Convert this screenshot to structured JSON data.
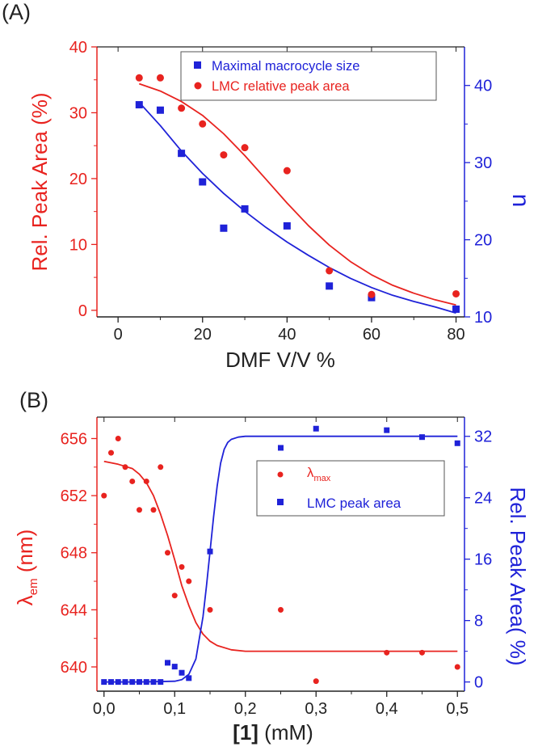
{
  "colors": {
    "red": "#e8231f",
    "blue": "#1f22d8",
    "black": "#222222"
  },
  "chart_data": [
    {
      "type": "scatter",
      "panel_label": "(A)",
      "xlabel": "DMF V/V %",
      "ylabel_left": "Rel. Peak Area (%)",
      "ylabel_right": "n",
      "xlim": [
        -5,
        82
      ],
      "ylim_left": [
        -1,
        40
      ],
      "ylim_right": [
        10,
        45
      ],
      "x_ticks": [
        0,
        20,
        40,
        60,
        80
      ],
      "x_tick_labels": [
        "0",
        "20",
        "40",
        "60",
        "80"
      ],
      "y_left_ticks": [
        0,
        10,
        20,
        30,
        40
      ],
      "y_left_tick_labels": [
        "0",
        "10",
        "20",
        "30",
        "40"
      ],
      "y_right_ticks": [
        10,
        20,
        30,
        40
      ],
      "y_right_tick_labels": [
        "10",
        "20",
        "30",
        "40"
      ],
      "legend": [
        "Maximal macrocycle size",
        "LMC relative peak area"
      ],
      "series": [
        {
          "name": "Maximal macrocycle size",
          "axis": "right",
          "marker": "square",
          "color": "#1f22d8",
          "x": [
            5,
            10,
            15,
            20,
            25,
            30,
            40,
            50,
            60,
            80
          ],
          "y": [
            37.5,
            36.8,
            31.2,
            27.5,
            21.5,
            24,
            21.8,
            14,
            12.5,
            11
          ]
        },
        {
          "name": "LMC relative peak area",
          "axis": "left",
          "marker": "circle",
          "color": "#e8231f",
          "x": [
            5,
            10,
            15,
            20,
            25,
            30,
            40,
            50,
            60,
            80
          ],
          "y": [
            35.3,
            35.3,
            30.7,
            28.3,
            23.6,
            24.7,
            21.2,
            6,
            2.4,
            2.5
          ]
        }
      ],
      "fit_curves": [
        {
          "series": "LMC relative peak area",
          "axis": "left",
          "color": "#e8231f",
          "x": [
            5,
            10,
            15,
            20,
            25,
            30,
            35,
            40,
            45,
            50,
            55,
            60,
            65,
            70,
            75,
            80
          ],
          "y": [
            34.4,
            33.3,
            31.7,
            29.6,
            26.8,
            23.5,
            19.9,
            16.3,
            12.9,
            9.9,
            7.4,
            5.4,
            3.8,
            2.6,
            1.6,
            0.8
          ]
        },
        {
          "series": "Maximal macrocycle size",
          "axis": "right",
          "color": "#1f22d8",
          "x": [
            5,
            10,
            15,
            20,
            25,
            30,
            35,
            40,
            45,
            50,
            55,
            60,
            65,
            70,
            75,
            80
          ],
          "y": [
            37.8,
            34.8,
            31.5,
            28.6,
            26.0,
            23.7,
            21.6,
            19.7,
            18.0,
            16.4,
            15.0,
            13.8,
            12.8,
            12.0,
            11.3,
            10.5
          ]
        }
      ]
    },
    {
      "type": "scatter",
      "panel_label": "(B)",
      "xlabel_bold": "[1]",
      "xlabel_rest": " (mM)",
      "ylabel_left_main": "λ",
      "ylabel_left_sub": "em",
      "ylabel_left_rest": " (nm)",
      "ylabel_right": "Rel. Peak Area( %)",
      "xlim": [
        -0.01,
        0.51
      ],
      "ylim_left": [
        638.3,
        657.5
      ],
      "ylim_right": [
        -1.2,
        34.5
      ],
      "x_ticks": [
        0,
        0.1,
        0.2,
        0.3,
        0.4,
        0.5
      ],
      "x_tick_labels": [
        "0,0",
        "0,1",
        "0,2",
        "0,3",
        "0,4",
        "0,5"
      ],
      "y_left_ticks": [
        640,
        644,
        648,
        652,
        656
      ],
      "y_left_tick_labels": [
        "640",
        "644",
        "648",
        "652",
        "656"
      ],
      "y_right_ticks": [
        0,
        8,
        16,
        24,
        32
      ],
      "y_right_tick_labels": [
        "0",
        "8",
        "16",
        "24",
        "32"
      ],
      "legend_lambda_main": "λ",
      "legend_lambda_sub": "max",
      "legend_lmc": "LMC peak area",
      "series": [
        {
          "name": "λmax",
          "axis": "left",
          "marker": "circle",
          "color": "#e8231f",
          "x": [
            0,
            0.01,
            0.02,
            0.03,
            0.04,
            0.05,
            0.06,
            0.07,
            0.08,
            0.09,
            0.1,
            0.11,
            0.12,
            0.15,
            0.25,
            0.3,
            0.4,
            0.45,
            0.5
          ],
          "y": [
            652,
            655,
            656,
            654,
            653,
            651,
            653,
            651,
            654,
            648,
            645,
            647,
            646,
            644,
            644,
            639,
            641,
            641,
            640
          ]
        },
        {
          "name": "LMC peak area",
          "axis": "right",
          "marker": "square",
          "color": "#1f22d8",
          "x": [
            0,
            0.01,
            0.02,
            0.03,
            0.04,
            0.05,
            0.06,
            0.07,
            0.08,
            0.09,
            0.1,
            0.11,
            0.12,
            0.15,
            0.25,
            0.3,
            0.4,
            0.45,
            0.5
          ],
          "y": [
            0,
            0,
            0,
            0,
            0,
            0,
            0,
            0,
            0,
            2.5,
            2,
            1.2,
            0.5,
            17,
            30.5,
            33,
            32.8,
            31.9,
            31.1
          ]
        }
      ],
      "fit_curves": [
        {
          "series": "λmax",
          "axis": "left",
          "color": "#e8231f",
          "x": [
            0,
            0.02,
            0.04,
            0.05,
            0.06,
            0.07,
            0.08,
            0.09,
            0.1,
            0.11,
            0.12,
            0.13,
            0.14,
            0.15,
            0.16,
            0.18,
            0.2,
            0.25,
            0.3,
            0.35,
            0.4,
            0.45,
            0.5
          ],
          "y": [
            654.4,
            654.2,
            653.9,
            653.5,
            652.9,
            652.0,
            650.7,
            649.2,
            647.5,
            645.7,
            644.3,
            643.1,
            642.3,
            641.8,
            641.5,
            641.2,
            641.1,
            641.1,
            641.1,
            641.1,
            641.1,
            641.1,
            641.1
          ]
        },
        {
          "series": "LMC peak area",
          "axis": "right",
          "color": "#1f22d8",
          "x": [
            0,
            0.05,
            0.1,
            0.11,
            0.12,
            0.13,
            0.14,
            0.145,
            0.15,
            0.155,
            0.16,
            0.165,
            0.17,
            0.175,
            0.18,
            0.19,
            0.2,
            0.25,
            0.3,
            0.35,
            0.4,
            0.45,
            0.5
          ],
          "y": [
            0,
            0,
            0.1,
            0.3,
            1.0,
            3.0,
            8.5,
            12.5,
            17.0,
            21.5,
            25.5,
            28.5,
            30.3,
            31.2,
            31.6,
            31.9,
            32,
            32,
            32,
            32,
            32,
            32,
            32
          ]
        }
      ]
    }
  ]
}
